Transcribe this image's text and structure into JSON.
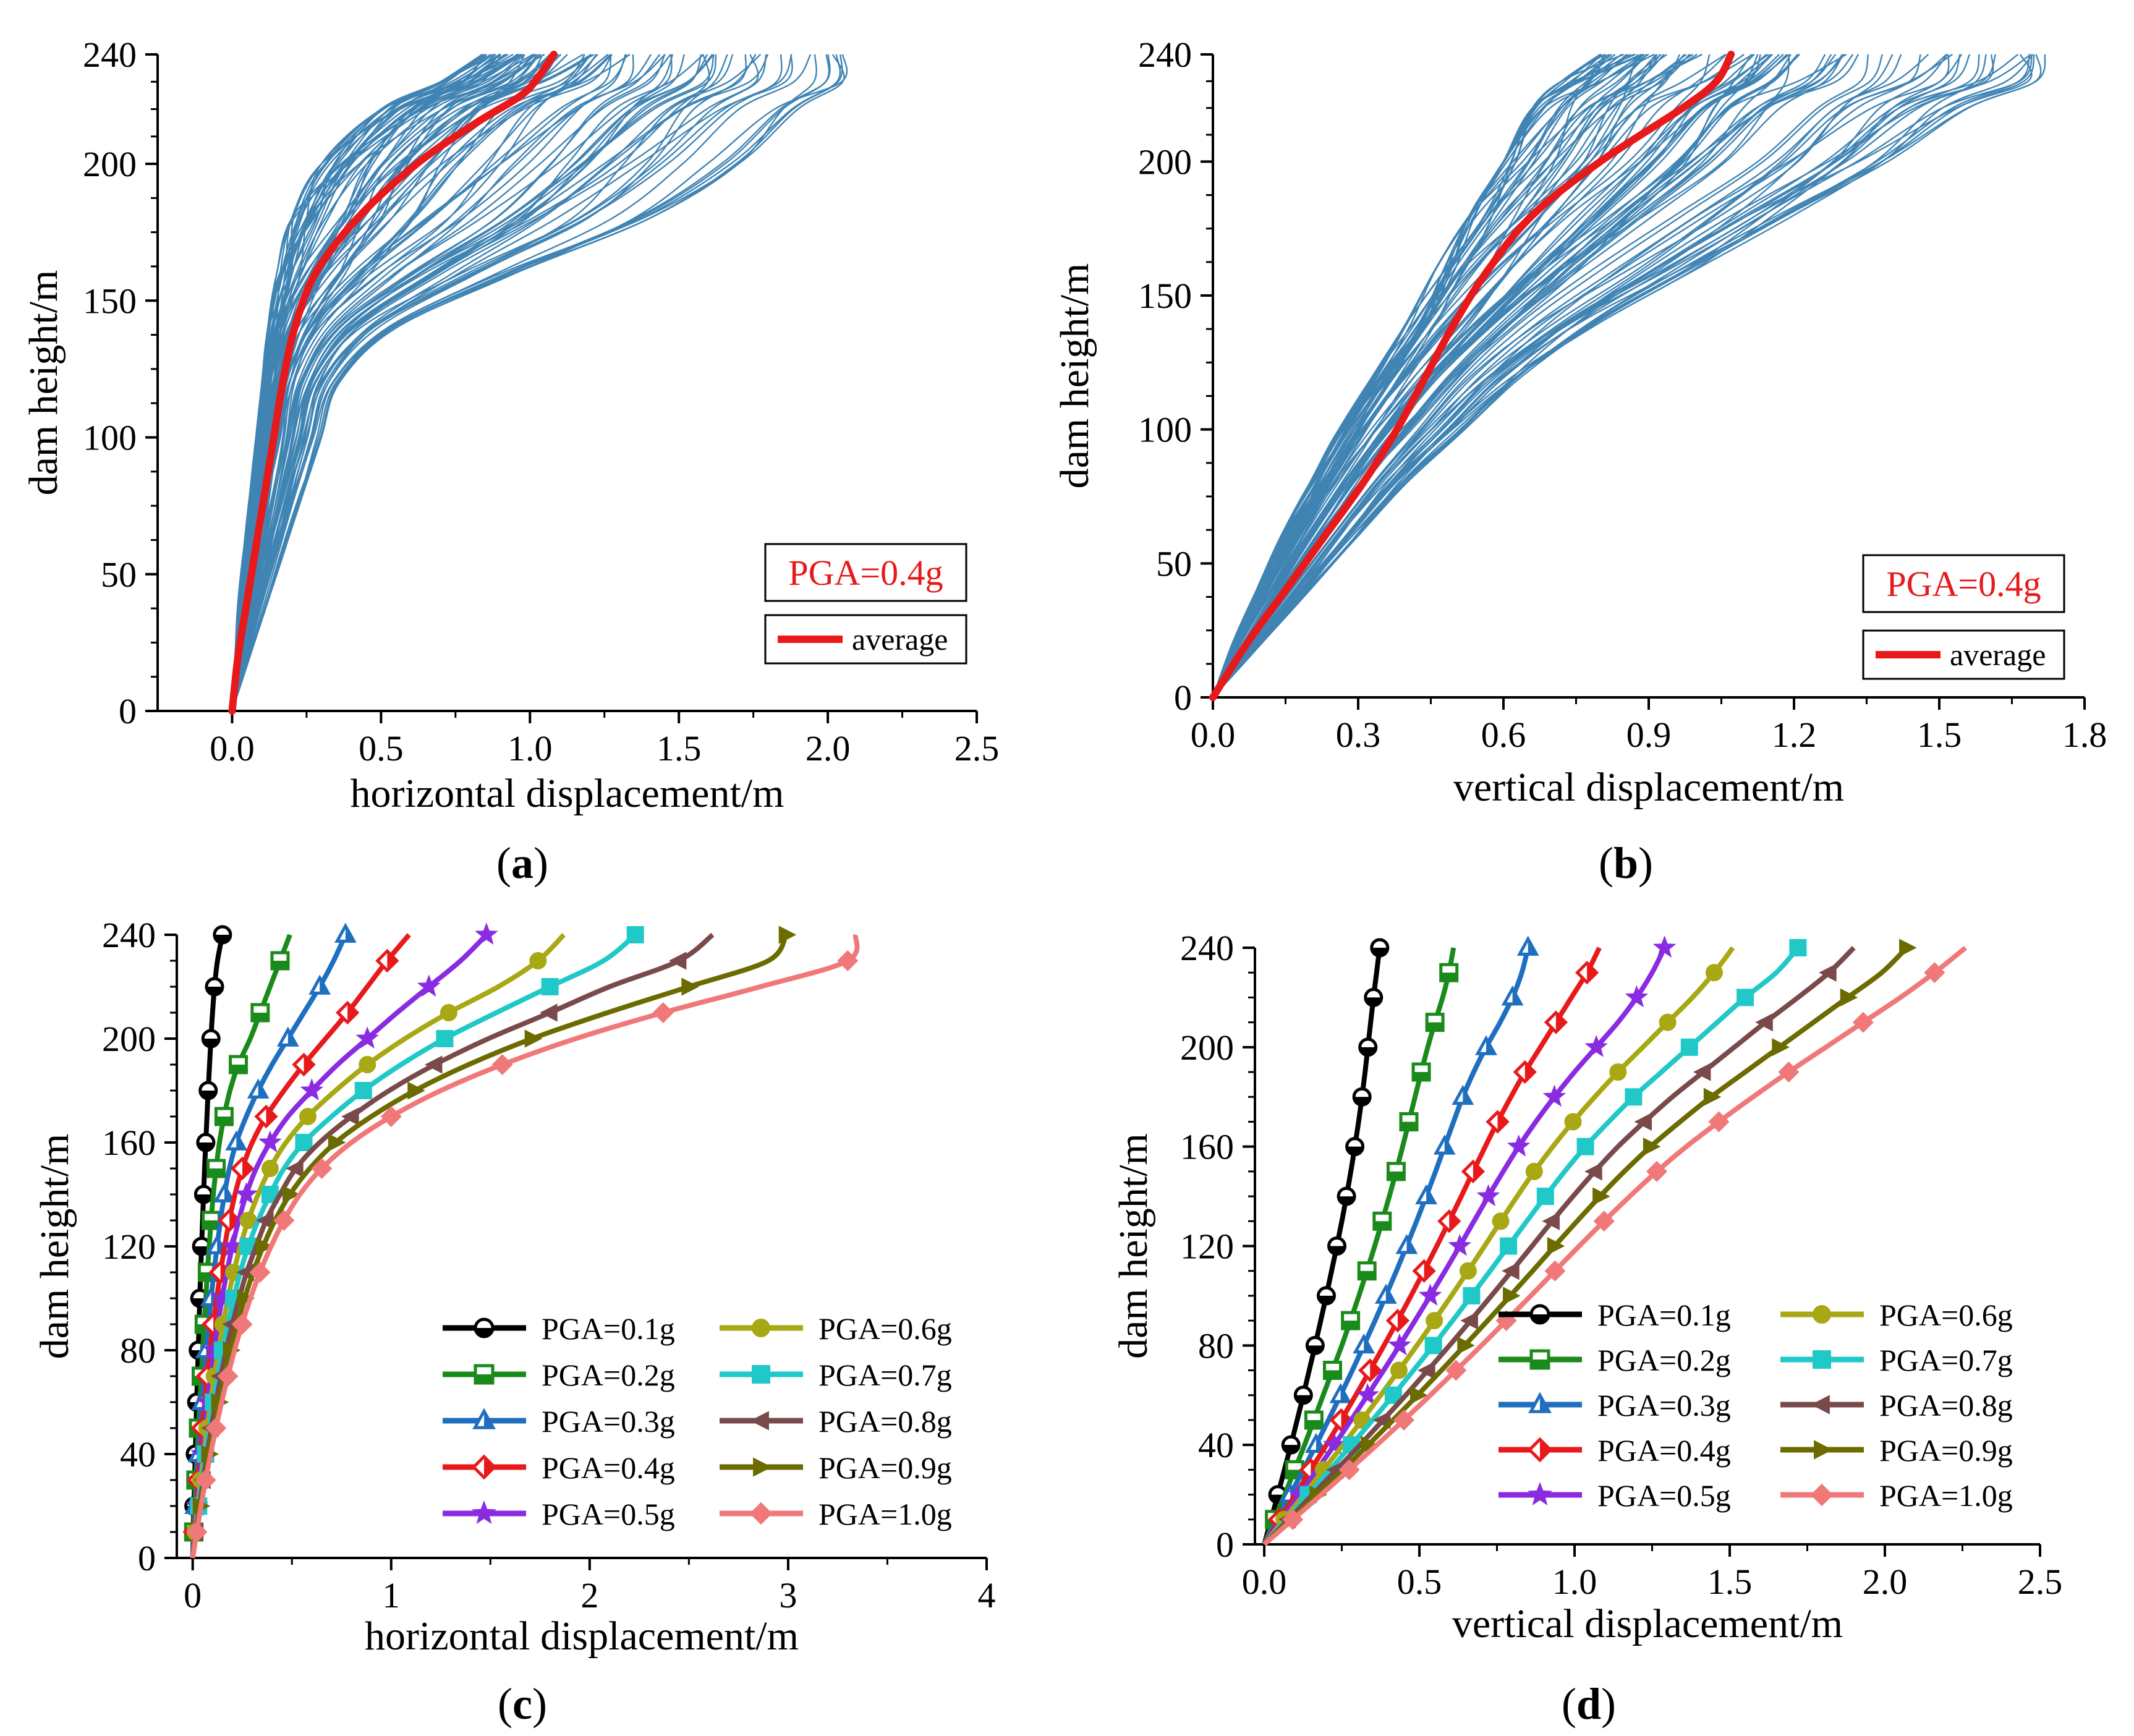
{
  "chart_data": [
    {
      "panel": "a",
      "caption": "(a)",
      "caption_letter": "a",
      "type": "line",
      "title": "",
      "xlabel": "horizontal displacement/m",
      "ylabel": "dam height/m",
      "xlim": [
        -0.25,
        2.5
      ],
      "ylim": [
        0,
        240
      ],
      "xticks": [
        0.0,
        0.5,
        1.0,
        1.5,
        2.0,
        2.5
      ],
      "xtick_labels": [
        "0.0",
        "0.5",
        "1.0",
        "1.5",
        "2.0",
        "2.5"
      ],
      "yticks": [
        0,
        50,
        100,
        150,
        200,
        240
      ],
      "ytick_labels": [
        "0",
        "50",
        "100",
        "150",
        "200",
        "240"
      ],
      "annotation": "PGA=0.4g",
      "legend": [
        {
          "label": "average",
          "color": "#e8191a"
        }
      ],
      "ensemble_color": "#1f6fa8",
      "ensemble_count": 100,
      "envelope": {
        "heights": [
          0,
          20,
          40,
          60,
          80,
          100,
          120,
          140,
          160,
          180,
          200,
          220,
          230,
          240
        ],
        "min": [
          0,
          0.01,
          0.02,
          0.04,
          0.06,
          0.08,
          0.1,
          0.12,
          0.15,
          0.2,
          0.3,
          0.5,
          0.7,
          0.84
        ],
        "max": [
          0,
          0.06,
          0.12,
          0.18,
          0.24,
          0.3,
          0.36,
          0.55,
          0.95,
          1.4,
          1.7,
          1.9,
          2.05,
          2.05
        ]
      },
      "average": {
        "name": "average",
        "heights": [
          0,
          20,
          40,
          60,
          80,
          100,
          120,
          140,
          160,
          180,
          200,
          215,
          225,
          232,
          240
        ],
        "values": [
          0,
          0.02,
          0.05,
          0.08,
          0.11,
          0.14,
          0.17,
          0.21,
          0.28,
          0.42,
          0.62,
          0.82,
          0.97,
          1.03,
          1.08
        ]
      }
    },
    {
      "panel": "b",
      "caption": "(b)",
      "caption_letter": "b",
      "type": "line",
      "title": "",
      "xlabel": "vertical displacement/m",
      "ylabel": "dam height/m",
      "xlim": [
        0,
        1.8
      ],
      "ylim": [
        0,
        240
      ],
      "xticks": [
        0.0,
        0.3,
        0.6,
        0.9,
        1.2,
        1.5,
        1.8
      ],
      "xtick_labels": [
        "0.0",
        "0.3",
        "0.6",
        "0.9",
        "1.2",
        "1.5",
        "1.8"
      ],
      "yticks": [
        0,
        50,
        100,
        150,
        200,
        240
      ],
      "ytick_labels": [
        "0",
        "50",
        "100",
        "150",
        "200",
        "240"
      ],
      "annotation": "PGA=0.4g",
      "legend": [
        {
          "label": "average",
          "color": "#e8191a"
        }
      ],
      "ensemble_color": "#1f6fa8",
      "ensemble_count": 100,
      "envelope": {
        "heights": [
          0,
          20,
          40,
          60,
          80,
          100,
          120,
          140,
          160,
          180,
          200,
          220,
          230,
          240
        ],
        "min": [
          0,
          0.04,
          0.09,
          0.14,
          0.2,
          0.26,
          0.33,
          0.4,
          0.46,
          0.53,
          0.6,
          0.66,
          0.72,
          0.8
        ],
        "max": [
          0,
          0.1,
          0.2,
          0.3,
          0.4,
          0.52,
          0.64,
          0.8,
          1.0,
          1.2,
          1.4,
          1.56,
          1.7,
          1.72
        ]
      },
      "average": {
        "name": "average",
        "heights": [
          0,
          20,
          40,
          60,
          80,
          100,
          120,
          140,
          160,
          180,
          200,
          220,
          230,
          240
        ],
        "values": [
          0,
          0.07,
          0.15,
          0.23,
          0.31,
          0.38,
          0.44,
          0.5,
          0.57,
          0.66,
          0.8,
          0.97,
          1.04,
          1.07
        ]
      }
    },
    {
      "panel": "c",
      "caption": "(c)",
      "caption_letter": "c",
      "type": "line",
      "title": "",
      "xlabel": "horizontal displacement/m",
      "ylabel": "dam height/m",
      "xlim": [
        -0.08,
        4
      ],
      "ylim": [
        0,
        240
      ],
      "xticks": [
        0,
        1,
        2,
        3,
        4
      ],
      "xtick_labels": [
        "0",
        "1",
        "2",
        "3",
        "4"
      ],
      "yticks": [
        0,
        40,
        80,
        120,
        160,
        200,
        240
      ],
      "ytick_labels": [
        "0",
        "40",
        "80",
        "120",
        "160",
        "200",
        "240"
      ],
      "heights": [
        0,
        10,
        20,
        30,
        40,
        50,
        60,
        70,
        80,
        90,
        100,
        110,
        120,
        130,
        140,
        150,
        160,
        170,
        180,
        190,
        200,
        210,
        220,
        230,
        240
      ],
      "series": [
        {
          "name": "PGA=0.1g",
          "color": "#000000",
          "marker": "circle-half",
          "values": [
            0,
            0.003,
            0.006,
            0.01,
            0.013,
            0.017,
            0.02,
            0.024,
            0.028,
            0.032,
            0.036,
            0.04,
            0.045,
            0.05,
            0.055,
            0.06,
            0.066,
            0.072,
            0.078,
            0.085,
            0.092,
            0.1,
            0.11,
            0.125,
            0.15
          ]
        },
        {
          "name": "PGA=0.2g",
          "color": "#1a8a1a",
          "marker": "square-half",
          "values": [
            0,
            0.005,
            0.01,
            0.016,
            0.022,
            0.029,
            0.036,
            0.043,
            0.05,
            0.058,
            0.066,
            0.074,
            0.083,
            0.093,
            0.104,
            0.118,
            0.135,
            0.158,
            0.188,
            0.23,
            0.29,
            0.34,
            0.39,
            0.44,
            0.49
          ]
        },
        {
          "name": "PGA=0.3g",
          "color": "#1f6fc0",
          "marker": "triangle-half",
          "values": [
            0,
            0.007,
            0.014,
            0.022,
            0.03,
            0.039,
            0.048,
            0.058,
            0.068,
            0.08,
            0.093,
            0.107,
            0.123,
            0.14,
            0.16,
            0.185,
            0.22,
            0.27,
            0.33,
            0.4,
            0.48,
            0.56,
            0.64,
            0.71,
            0.77
          ]
        },
        {
          "name": "PGA=0.4g",
          "color": "#e8191a",
          "marker": "diamond-half",
          "values": [
            0,
            0.009,
            0.018,
            0.028,
            0.038,
            0.049,
            0.061,
            0.074,
            0.088,
            0.104,
            0.121,
            0.14,
            0.161,
            0.185,
            0.213,
            0.25,
            0.3,
            0.37,
            0.46,
            0.56,
            0.67,
            0.78,
            0.88,
            0.98,
            1.09
          ]
        },
        {
          "name": "PGA=0.5g",
          "color": "#8a2be2",
          "marker": "star",
          "values": [
            0,
            0.011,
            0.022,
            0.034,
            0.047,
            0.06,
            0.075,
            0.091,
            0.108,
            0.127,
            0.148,
            0.172,
            0.2,
            0.232,
            0.27,
            0.32,
            0.39,
            0.48,
            0.6,
            0.73,
            0.88,
            1.03,
            1.19,
            1.35,
            1.48
          ]
        },
        {
          "name": "PGA=0.6g",
          "color": "#a8a814",
          "marker": "circle",
          "values": [
            0,
            0.013,
            0.026,
            0.041,
            0.056,
            0.072,
            0.09,
            0.109,
            0.13,
            0.153,
            0.178,
            0.207,
            0.24,
            0.28,
            0.33,
            0.39,
            0.47,
            0.58,
            0.72,
            0.88,
            1.07,
            1.29,
            1.54,
            1.74,
            1.87
          ]
        },
        {
          "name": "PGA=0.7g",
          "color": "#20c8c8",
          "marker": "square",
          "values": [
            0,
            0.015,
            0.03,
            0.047,
            0.065,
            0.084,
            0.104,
            0.126,
            0.15,
            0.177,
            0.207,
            0.24,
            0.28,
            0.33,
            0.39,
            0.46,
            0.56,
            0.7,
            0.86,
            1.05,
            1.27,
            1.53,
            1.8,
            2.07,
            2.23
          ]
        },
        {
          "name": "PGA=0.8g",
          "color": "#7a4a4a",
          "marker": "triangle-left",
          "values": [
            0,
            0.017,
            0.034,
            0.053,
            0.073,
            0.094,
            0.117,
            0.142,
            0.169,
            0.2,
            0.234,
            0.272,
            0.32,
            0.37,
            0.44,
            0.52,
            0.64,
            0.8,
            0.99,
            1.22,
            1.49,
            1.8,
            2.1,
            2.45,
            2.62
          ]
        },
        {
          "name": "PGA=0.9g",
          "color": "#6b6b00",
          "marker": "triangle-right",
          "values": [
            0,
            0.019,
            0.038,
            0.059,
            0.081,
            0.105,
            0.131,
            0.159,
            0.19,
            0.224,
            0.262,
            0.305,
            0.355,
            0.415,
            0.49,
            0.59,
            0.72,
            0.9,
            1.12,
            1.39,
            1.71,
            2.09,
            2.5,
            2.9,
            2.99
          ]
        },
        {
          "name": "PGA=1.0g",
          "color": "#f07878",
          "marker": "diamond",
          "values": [
            0,
            0.021,
            0.042,
            0.065,
            0.09,
            0.117,
            0.146,
            0.177,
            0.211,
            0.249,
            0.291,
            0.339,
            0.395,
            0.46,
            0.54,
            0.65,
            0.8,
            1.0,
            1.25,
            1.56,
            1.93,
            2.37,
            2.86,
            3.3,
            3.34
          ]
        }
      ]
    },
    {
      "panel": "d",
      "caption": "(d)",
      "caption_letter": "d",
      "type": "line",
      "title": "",
      "xlabel": "vertical displacement/m",
      "ylabel": "dam height/m",
      "xlim": [
        -0.03,
        2.5
      ],
      "ylim": [
        0,
        240
      ],
      "xticks": [
        0.0,
        0.5,
        1.0,
        1.5,
        2.0,
        2.5
      ],
      "xtick_labels": [
        "0.0",
        "0.5",
        "1.0",
        "1.5",
        "2.0",
        "2.5"
      ],
      "yticks": [
        0,
        40,
        80,
        120,
        160,
        200,
        240
      ],
      "ytick_labels": [
        "0",
        "40",
        "80",
        "120",
        "160",
        "200",
        "240"
      ],
      "heights": [
        0,
        10,
        20,
        30,
        40,
        50,
        60,
        70,
        80,
        90,
        100,
        110,
        120,
        130,
        140,
        150,
        160,
        170,
        180,
        190,
        200,
        210,
        220,
        230,
        240
      ],
      "series": [
        {
          "name": "PGA=0.1g",
          "color": "#000000",
          "marker": "circle-half",
          "values": [
            0,
            0.022,
            0.044,
            0.065,
            0.086,
            0.106,
            0.126,
            0.145,
            0.164,
            0.182,
            0.2,
            0.217,
            0.234,
            0.25,
            0.265,
            0.279,
            0.292,
            0.304,
            0.315,
            0.325,
            0.334,
            0.343,
            0.352,
            0.362,
            0.372
          ]
        },
        {
          "name": "PGA=0.2g",
          "color": "#1a8a1a",
          "marker": "square-half",
          "values": [
            0,
            0.033,
            0.066,
            0.098,
            0.13,
            0.16,
            0.19,
            0.22,
            0.25,
            0.278,
            0.305,
            0.331,
            0.356,
            0.38,
            0.403,
            0.425,
            0.446,
            0.466,
            0.486,
            0.506,
            0.527,
            0.55,
            0.575,
            0.595,
            0.61
          ]
        },
        {
          "name": "PGA=0.3g",
          "color": "#1f6fc0",
          "marker": "triangle-half",
          "values": [
            0,
            0.042,
            0.084,
            0.126,
            0.167,
            0.207,
            0.246,
            0.284,
            0.321,
            0.357,
            0.392,
            0.426,
            0.459,
            0.491,
            0.522,
            0.552,
            0.581,
            0.61,
            0.64,
            0.675,
            0.715,
            0.76,
            0.8,
            0.83,
            0.85
          ]
        },
        {
          "name": "PGA=0.4g",
          "color": "#e8191a",
          "marker": "diamond-half",
          "values": [
            0,
            0.05,
            0.1,
            0.15,
            0.2,
            0.248,
            0.295,
            0.341,
            0.386,
            0.43,
            0.473,
            0.515,
            0.556,
            0.596,
            0.635,
            0.673,
            0.712,
            0.752,
            0.795,
            0.84,
            0.89,
            0.94,
            0.99,
            1.04,
            1.08
          ]
        },
        {
          "name": "PGA=0.5g",
          "color": "#8a2be2",
          "marker": "star",
          "values": [
            0,
            0.057,
            0.114,
            0.17,
            0.226,
            0.28,
            0.333,
            0.385,
            0.436,
            0.486,
            0.535,
            0.583,
            0.63,
            0.676,
            0.722,
            0.77,
            0.82,
            0.875,
            0.935,
            1.0,
            1.07,
            1.14,
            1.2,
            1.25,
            1.29
          ]
        },
        {
          "name": "PGA=0.6g",
          "color": "#a8a814",
          "marker": "circle",
          "values": [
            0,
            0.064,
            0.128,
            0.191,
            0.254,
            0.315,
            0.375,
            0.434,
            0.492,
            0.548,
            0.603,
            0.657,
            0.71,
            0.762,
            0.815,
            0.87,
            0.93,
            0.995,
            1.065,
            1.14,
            1.22,
            1.3,
            1.38,
            1.45,
            1.51
          ]
        },
        {
          "name": "PGA=0.7g",
          "color": "#20c8c8",
          "marker": "square",
          "values": [
            0,
            0.071,
            0.142,
            0.212,
            0.281,
            0.349,
            0.416,
            0.481,
            0.545,
            0.607,
            0.668,
            0.728,
            0.787,
            0.846,
            0.906,
            0.968,
            1.035,
            1.11,
            1.19,
            1.28,
            1.37,
            1.46,
            1.55,
            1.65,
            1.72
          ]
        },
        {
          "name": "PGA=0.8g",
          "color": "#7a4a4a",
          "marker": "triangle-left",
          "values": [
            0,
            0.078,
            0.156,
            0.233,
            0.309,
            0.383,
            0.456,
            0.527,
            0.597,
            0.665,
            0.732,
            0.798,
            0.863,
            0.928,
            0.995,
            1.065,
            1.14,
            1.225,
            1.315,
            1.415,
            1.515,
            1.615,
            1.72,
            1.82,
            1.9
          ]
        },
        {
          "name": "PGA=0.9g",
          "color": "#6b6b00",
          "marker": "triangle-right",
          "values": [
            0,
            0.085,
            0.17,
            0.253,
            0.335,
            0.415,
            0.494,
            0.571,
            0.646,
            0.72,
            0.793,
            0.865,
            0.936,
            1.008,
            1.082,
            1.16,
            1.245,
            1.34,
            1.44,
            1.55,
            1.66,
            1.77,
            1.88,
            1.99,
            2.07
          ]
        },
        {
          "name": "PGA=1.0g",
          "color": "#f07878",
          "marker": "diamond",
          "values": [
            0,
            0.092,
            0.184,
            0.274,
            0.363,
            0.45,
            0.535,
            0.618,
            0.7,
            0.78,
            0.859,
            0.937,
            1.015,
            1.095,
            1.178,
            1.265,
            1.36,
            1.465,
            1.575,
            1.69,
            1.81,
            1.93,
            2.05,
            2.16,
            2.26
          ]
        }
      ]
    }
  ]
}
